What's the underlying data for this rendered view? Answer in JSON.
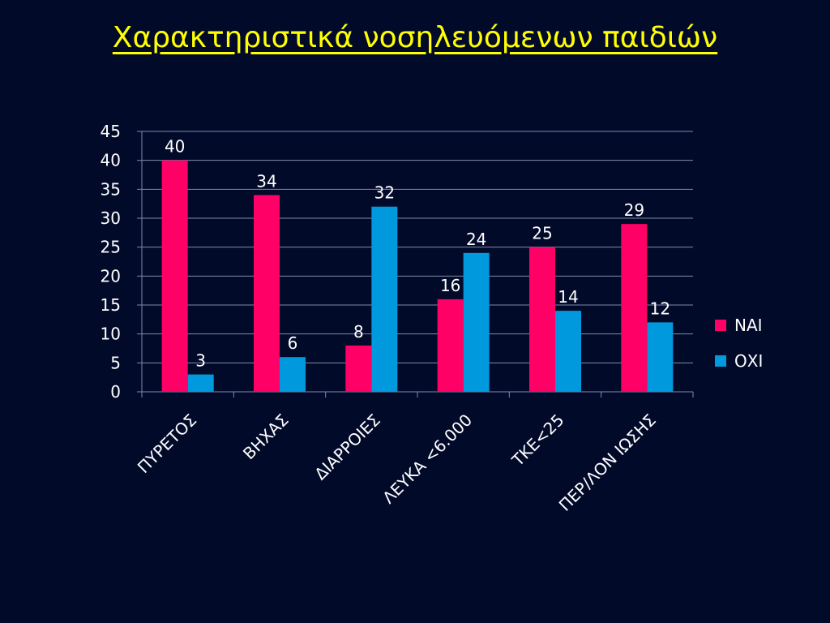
{
  "slide": {
    "title": "Χαρακτηριστικά νοσηλευόμενων παιδιών"
  },
  "chart_data": {
    "type": "bar",
    "title": "",
    "xlabel": "",
    "ylabel": "",
    "categories": [
      "ΠΥΡΕΤΟΣ",
      "ΒΗΧΑΣ",
      "ΔΙΑΡΡΟΙΕΣ",
      "ΛΕΥΚΑ <6.000",
      "ΤΚΕ<25",
      "ΠΕΡ/ΛΟΝ ΙΩΣΗΣ"
    ],
    "series": [
      {
        "name": "ΝΑΙ",
        "color": "#ff0066",
        "values": [
          40,
          34,
          8,
          16,
          25,
          29
        ]
      },
      {
        "name": "ΟΧΙ",
        "color": "#0099dd",
        "values": [
          3,
          6,
          32,
          24,
          14,
          12
        ]
      }
    ],
    "ylim": [
      0,
      45
    ],
    "yticks": [
      0,
      5,
      10,
      15,
      20,
      25,
      30,
      35,
      40,
      45
    ],
    "grid": true,
    "legend_position": "right",
    "data_labels": true,
    "category_label_rotation": -45
  }
}
